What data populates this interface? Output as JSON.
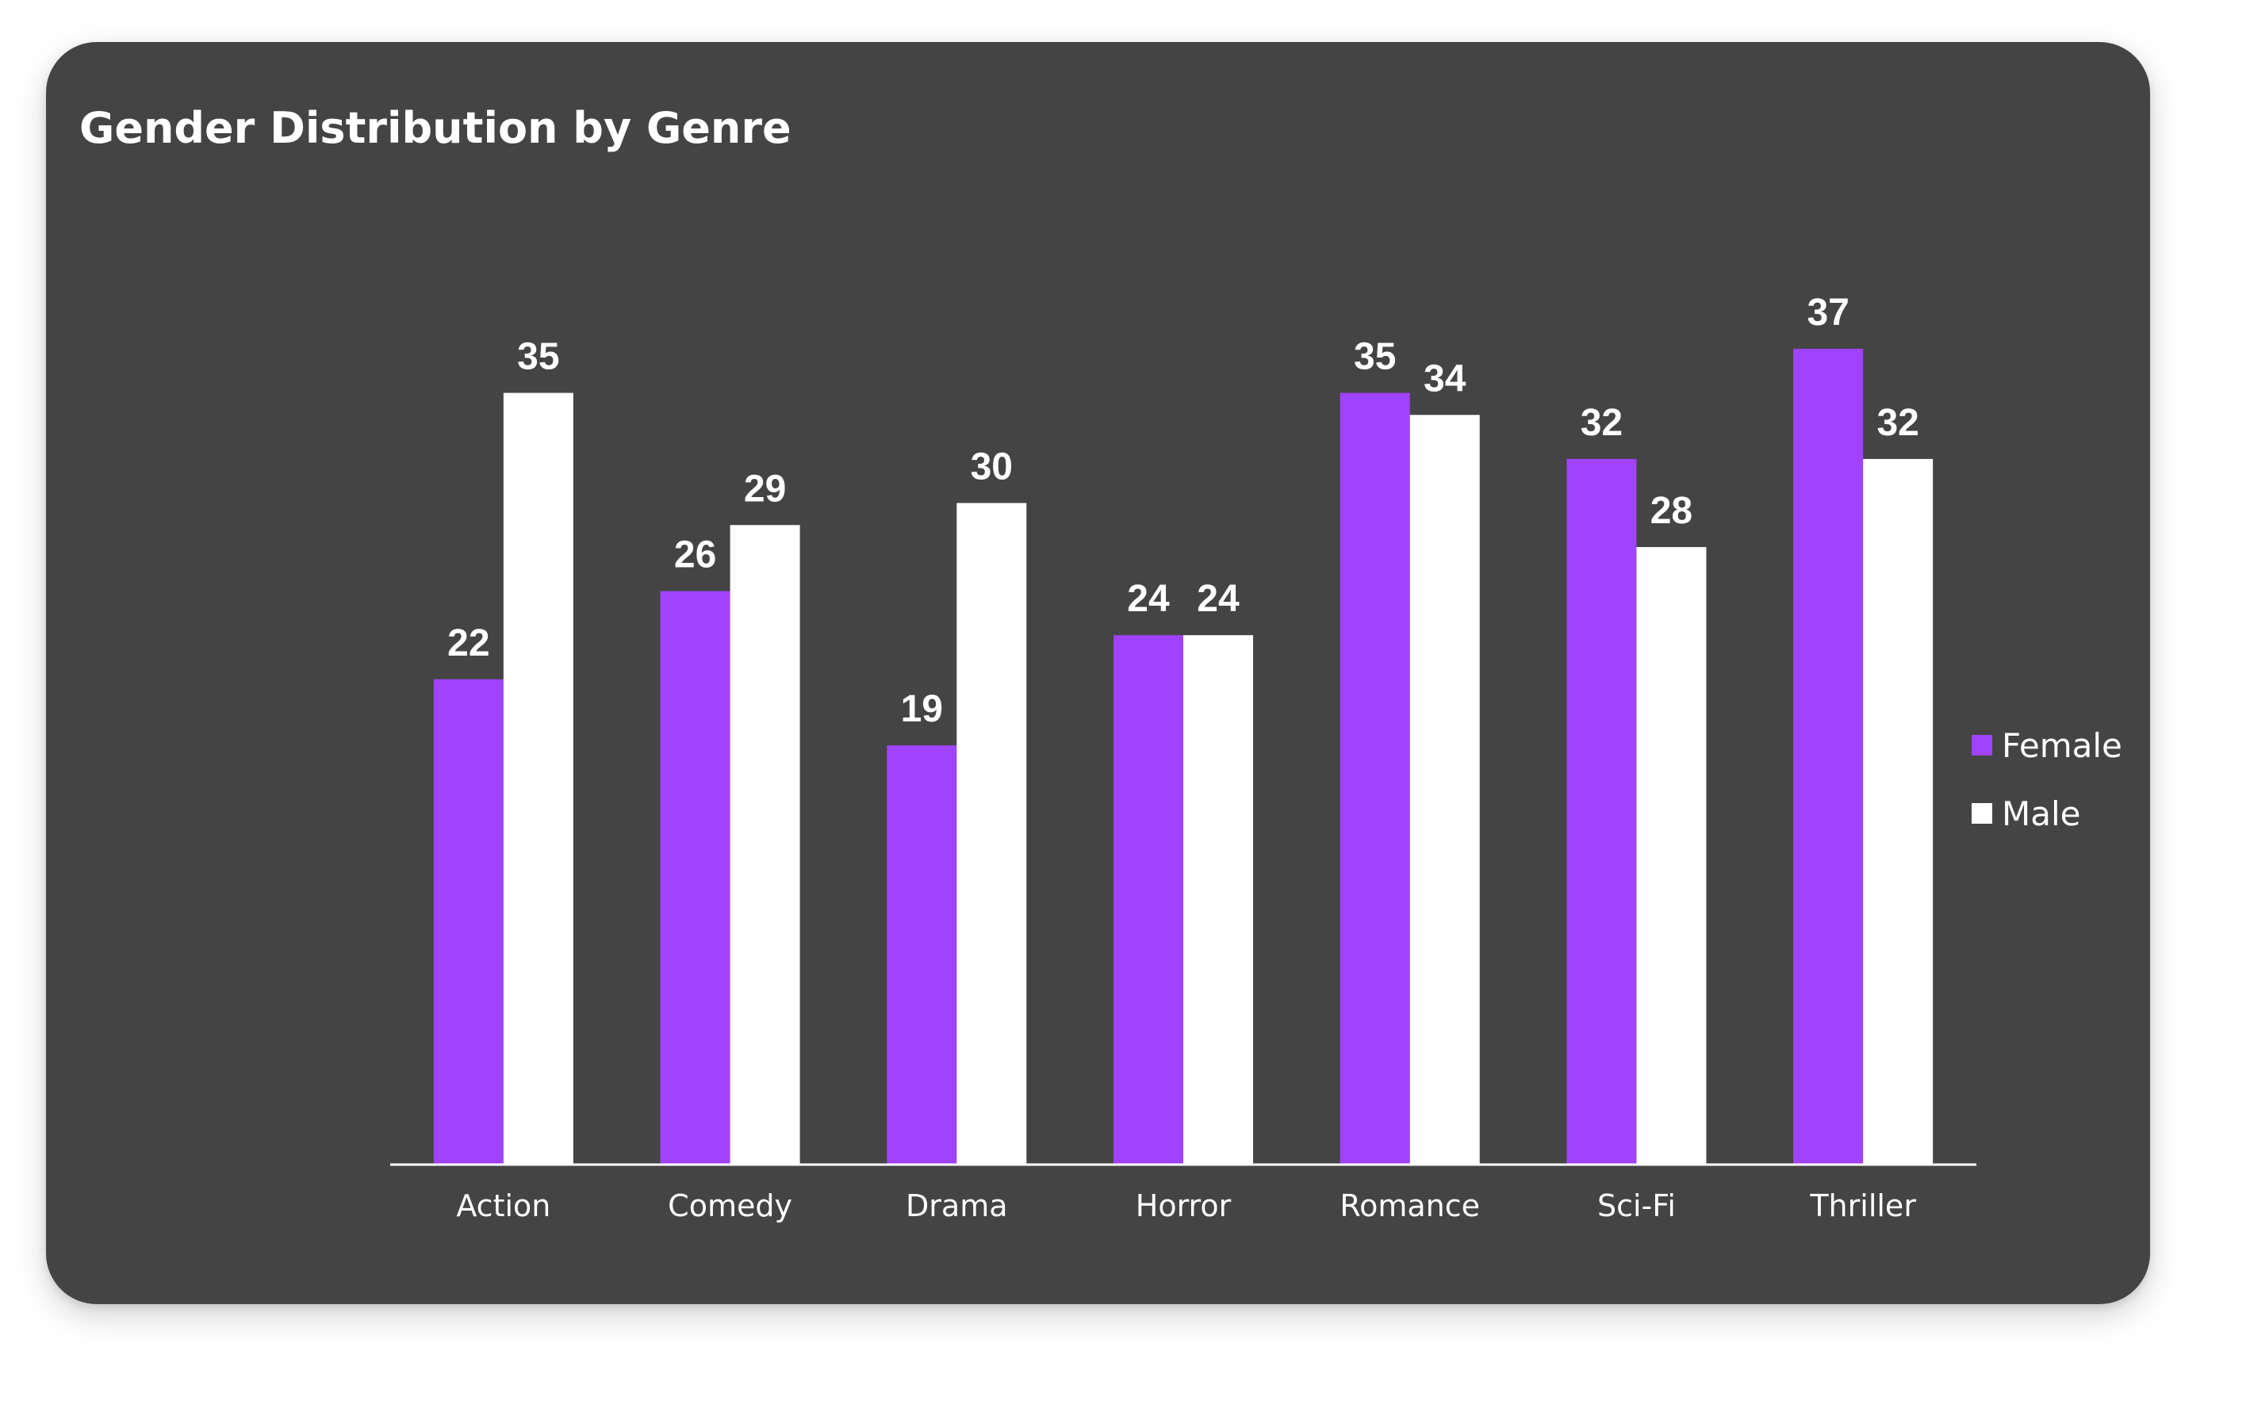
{
  "chart_data": {
    "type": "bar",
    "title": "Gender Distribution by Genre",
    "xlabel": "",
    "ylabel": "",
    "categories": [
      "Action",
      "Comedy",
      "Drama",
      "Horror",
      "Romance",
      "Sci-Fi",
      "Thriller"
    ],
    "series": [
      {
        "name": "Female",
        "color": "#A142FF",
        "values": [
          22,
          26,
          19,
          24,
          35,
          32,
          37
        ]
      },
      {
        "name": "Male",
        "color": "#FFFFFF",
        "values": [
          35,
          29,
          30,
          24,
          34,
          28,
          32
        ]
      }
    ],
    "ylim": [
      0,
      37
    ],
    "grid": false,
    "data_labels": true,
    "legend_position": "right"
  },
  "theme": {
    "card_background": "#444444",
    "text_color": "#FFFFFF",
    "axis_color": "#FFFFFF"
  }
}
